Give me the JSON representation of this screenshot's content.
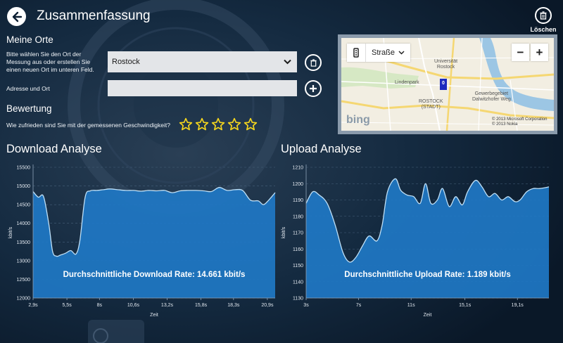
{
  "header": {
    "title": "Zusammenfassung",
    "delete_label": "Löschen",
    "back_icon": "arrow-left-icon",
    "delete_icon": "trash-icon"
  },
  "places": {
    "title": "Meine Orte",
    "instruction": "Bitte wählen Sie den Ort der Messung aus oder erstellen Sie einen neuen Ort im unteren Feld.",
    "selected_place": "Rostock",
    "address_label": "Adresse und Ort",
    "address_value": ""
  },
  "rating": {
    "title": "Bewertung",
    "question": "Wie zufrieden sind Sie mit der gemessenen Geschwindigkeit?",
    "stars_total": 5,
    "stars_selected": 0,
    "star_color": "#f5d61d"
  },
  "map": {
    "style_label": "Straße",
    "zoom_out": "−",
    "zoom_in": "+",
    "labels": {
      "universitaet": "Universität\nRostock",
      "lindenpark": "Lindenpark",
      "gewerbegebiet": "Gewerbegebiet\nDalwitzhofer Weg",
      "stadt": "ROSTOCK\n(STADT)"
    },
    "marker_label": "0",
    "logo": "bing",
    "copyright_1": "© 2013 Microsoft Corporation",
    "copyright_2": "© 2013 Nokia"
  },
  "chart_data": [
    {
      "type": "area",
      "title": "Download Analyse",
      "xlabel": "Zeit",
      "ylabel": "kbit/s",
      "ylim": [
        12000,
        15500
      ],
      "yticks": [
        12000,
        12500,
        13000,
        13500,
        14000,
        14500,
        15000,
        15500
      ],
      "xlim": [
        2.9,
        21.5
      ],
      "xticks": [
        "2,9s",
        "5,5s",
        "8s",
        "10,6s",
        "13,2s",
        "15,8s",
        "18,3s",
        "20,9s"
      ],
      "xtick_values": [
        2.9,
        5.5,
        8.0,
        10.6,
        13.2,
        15.8,
        18.3,
        20.9
      ],
      "x": [
        2.9,
        3.3,
        3.7,
        4.1,
        4.4,
        4.7,
        5.0,
        5.4,
        5.8,
        6.2,
        6.5,
        6.9,
        7.3,
        7.8,
        8.3,
        8.8,
        9.4,
        10.0,
        10.6,
        11.2,
        11.8,
        12.4,
        13.0,
        13.6,
        14.2,
        14.8,
        15.4,
        16.0,
        16.6,
        17.2,
        17.8,
        18.4,
        19.0,
        19.6,
        20.2,
        20.6,
        21.0,
        21.5
      ],
      "values": [
        14850,
        14700,
        14720,
        14000,
        13250,
        13120,
        13150,
        13200,
        13270,
        13180,
        13550,
        14700,
        14870,
        14880,
        14900,
        14920,
        14900,
        14880,
        14880,
        14860,
        14880,
        14870,
        14880,
        14820,
        14870,
        14880,
        14880,
        14870,
        14850,
        14960,
        14880,
        14900,
        14880,
        14620,
        14600,
        14500,
        14620,
        14820
      ],
      "average_text": "Durchschnittliche Download Rate: 14.661 kbit/s",
      "area_color": "#1f77c4",
      "line_color": "#bfe0f7"
    },
    {
      "type": "area",
      "title": "Upload Analyse",
      "xlabel": "Zeit",
      "ylabel": "kbit/s",
      "ylim": [
        1130,
        1210
      ],
      "yticks": [
        1130,
        1140,
        1150,
        1160,
        1170,
        1180,
        1190,
        1200,
        1210
      ],
      "xlim": [
        3.0,
        21.5
      ],
      "xticks": [
        "3s",
        "7s",
        "11s",
        "15,1s",
        "19,1s"
      ],
      "xtick_values": [
        3.0,
        7.0,
        11.0,
        15.1,
        19.1
      ],
      "x": [
        3.0,
        3.5,
        4.0,
        4.6,
        5.2,
        5.8,
        6.3,
        6.8,
        7.3,
        7.8,
        8.4,
        8.8,
        9.2,
        9.8,
        10.2,
        10.7,
        11.2,
        11.7,
        12.1,
        12.5,
        13.0,
        13.4,
        13.9,
        14.4,
        14.9,
        15.3,
        15.9,
        16.4,
        16.9,
        17.4,
        17.9,
        18.4,
        18.9,
        19.3,
        19.8,
        20.3,
        20.8,
        21.5
      ],
      "values": [
        1188,
        1195,
        1193,
        1188,
        1175,
        1158,
        1152,
        1155,
        1162,
        1168,
        1165,
        1175,
        1195,
        1203,
        1196,
        1193,
        1192,
        1188,
        1200,
        1188,
        1190,
        1197,
        1186,
        1192,
        1187,
        1195,
        1202,
        1198,
        1192,
        1194,
        1190,
        1192,
        1189,
        1190,
        1195,
        1197,
        1197,
        1198
      ],
      "average_text": "Durchschnittliche Upload Rate: 1.189 kbit/s",
      "area_color": "#1f77c4",
      "line_color": "#bfe0f7"
    }
  ]
}
